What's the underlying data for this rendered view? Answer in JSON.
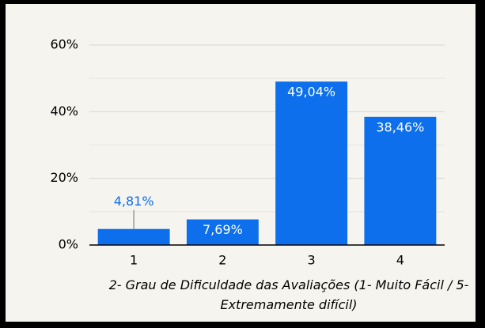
{
  "chart_data": {
    "type": "bar",
    "x_label": "2- Grau de Dificuldade das Avaliações (1- Muito Fácil / 5- Extremamente difícil)",
    "categories": [
      "1",
      "2",
      "3",
      "4"
    ],
    "values": [
      4.81,
      7.69,
      49.04,
      38.46
    ],
    "value_labels": [
      "4,81%",
      "7,69%",
      "49,04%",
      "38,46%"
    ],
    "color": "#0d6fec",
    "ylim": [
      0,
      60
    ],
    "yticks": [
      {
        "value": 0,
        "label": "0%"
      },
      {
        "value": 20,
        "label": "20%"
      },
      {
        "value": 40,
        "label": "40%"
      },
      {
        "value": 60,
        "label": "60%"
      }
    ],
    "minor_yticks": [
      10,
      30,
      50
    ],
    "grid": true
  }
}
